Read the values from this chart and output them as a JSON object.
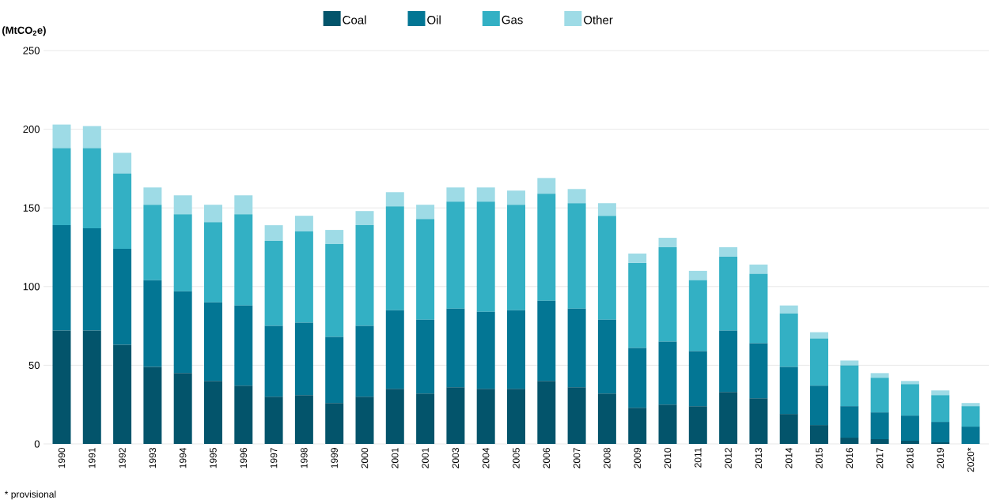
{
  "chart_data": {
    "type": "bar",
    "stacked": true,
    "ylabel": "(MtCO$_{2}$e)",
    "categories": [
      "1990",
      "1991",
      "1992",
      "1993",
      "1994",
      "1995",
      "1996",
      "1997",
      "1998",
      "1999",
      "2000",
      "2001",
      "2001",
      "2003",
      "2004",
      "2005",
      "2006",
      "2007",
      "2008",
      "2009",
      "2010",
      "2011",
      "2012",
      "2013",
      "2014",
      "2015",
      "2016",
      "2017",
      "2018",
      "2019",
      "2020*"
    ],
    "series": [
      {
        "name": "Coal",
        "color": "#03546b",
        "values": [
          72,
          72,
          63,
          49,
          45,
          40,
          37,
          30,
          31,
          26,
          30,
          35,
          32,
          36,
          35,
          35,
          40,
          36,
          32,
          23,
          25,
          24,
          33,
          29,
          19,
          12,
          4,
          3,
          2,
          1,
          0
        ]
      },
      {
        "name": "Oil",
        "color": "#037694",
        "values": [
          67,
          65,
          61,
          55,
          52,
          50,
          51,
          45,
          46,
          42,
          45,
          50,
          47,
          50,
          49,
          50,
          51,
          50,
          47,
          38,
          40,
          35,
          39,
          35,
          30,
          25,
          20,
          17,
          16,
          13,
          11
        ]
      },
      {
        "name": "Gas",
        "color": "#33b0c4",
        "values": [
          49,
          51,
          48,
          48,
          49,
          51,
          58,
          54,
          58,
          59,
          64,
          66,
          64,
          68,
          70,
          67,
          68,
          67,
          66,
          54,
          60,
          45,
          47,
          44,
          34,
          30,
          26,
          22,
          20,
          17,
          13
        ]
      },
      {
        "name": "Other",
        "color": "#9edbe6",
        "values": [
          15,
          14,
          13,
          11,
          12,
          11,
          12,
          10,
          10,
          9,
          9,
          9,
          9,
          9,
          9,
          9,
          10,
          9,
          8,
          6,
          6,
          6,
          6,
          6,
          5,
          4,
          3,
          3,
          2,
          3,
          2
        ]
      }
    ],
    "ylim": [
      0,
      250
    ],
    "yticks": [
      0,
      50,
      100,
      150,
      200,
      250
    ],
    "grid": "y",
    "legend": "top",
    "annotations": [
      "* provisional"
    ]
  }
}
